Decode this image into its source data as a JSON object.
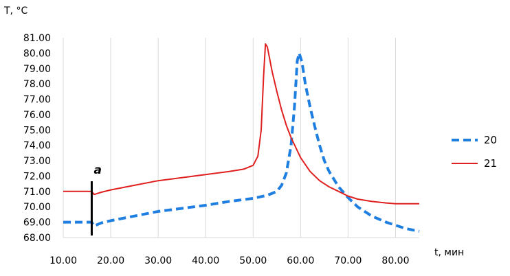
{
  "chart_data": {
    "type": "line",
    "title": "",
    "ylabel": "T, °C",
    "xlabel": "t, мин",
    "xlim": [
      10,
      85
    ],
    "ylim": [
      68,
      81
    ],
    "x_ticks": [
      10,
      20,
      30,
      40,
      50,
      60,
      70,
      80
    ],
    "x_tick_labels": [
      "10.00",
      "20.00",
      "30.00",
      "40.00",
      "50.00",
      "60.00",
      "70.00",
      "80.00"
    ],
    "y_ticks": [
      68,
      69,
      70,
      71,
      72,
      73,
      74,
      75,
      76,
      77,
      78,
      79,
      80,
      81
    ],
    "y_tick_labels": [
      "68.00",
      "69.00",
      "70.00",
      "71.00",
      "72.00",
      "73.00",
      "74.00",
      "75.00",
      "76.00",
      "77.00",
      "78.00",
      "79.00",
      "80.00",
      "81.00"
    ],
    "grid": "vertical",
    "legend_position": "right",
    "annotation": {
      "text": "a",
      "x": 16
    },
    "series": [
      {
        "name": "20",
        "color": "#1f7fe0",
        "style": "dashed",
        "points": [
          [
            10,
            69.0
          ],
          [
            15,
            69.0
          ],
          [
            16,
            69.0
          ],
          [
            16.5,
            68.75
          ],
          [
            18,
            68.95
          ],
          [
            20,
            69.1
          ],
          [
            25,
            69.4
          ],
          [
            30,
            69.7
          ],
          [
            35,
            69.9
          ],
          [
            40,
            70.1
          ],
          [
            45,
            70.35
          ],
          [
            50,
            70.55
          ],
          [
            53,
            70.75
          ],
          [
            55,
            71.0
          ],
          [
            56,
            71.4
          ],
          [
            57,
            72.2
          ],
          [
            58,
            74.0
          ],
          [
            58.7,
            76.5
          ],
          [
            59.3,
            79.5
          ],
          [
            59.7,
            80.0
          ],
          [
            60.3,
            79.4
          ],
          [
            61,
            78.0
          ],
          [
            62,
            76.5
          ],
          [
            63,
            75.2
          ],
          [
            64,
            74.0
          ],
          [
            65,
            73.0
          ],
          [
            66,
            72.3
          ],
          [
            68,
            71.3
          ],
          [
            70,
            70.6
          ],
          [
            72,
            70.0
          ],
          [
            75,
            69.4
          ],
          [
            78,
            69.0
          ],
          [
            80,
            68.8
          ],
          [
            82,
            68.6
          ],
          [
            85,
            68.4
          ]
        ]
      },
      {
        "name": "21",
        "color": "#e01f1f",
        "style": "solid",
        "points": [
          [
            10,
            71.0
          ],
          [
            16,
            71.0
          ],
          [
            16.5,
            70.8
          ],
          [
            18,
            70.95
          ],
          [
            20,
            71.1
          ],
          [
            25,
            71.4
          ],
          [
            30,
            71.7
          ],
          [
            35,
            71.9
          ],
          [
            40,
            72.1
          ],
          [
            45,
            72.3
          ],
          [
            48,
            72.45
          ],
          [
            50,
            72.7
          ],
          [
            51,
            73.3
          ],
          [
            51.7,
            75.0
          ],
          [
            52.2,
            78.5
          ],
          [
            52.6,
            80.6
          ],
          [
            53,
            80.4
          ],
          [
            54,
            78.8
          ],
          [
            55,
            77.5
          ],
          [
            56,
            76.3
          ],
          [
            57,
            75.3
          ],
          [
            58,
            74.5
          ],
          [
            60,
            73.2
          ],
          [
            62,
            72.3
          ],
          [
            64,
            71.7
          ],
          [
            66,
            71.3
          ],
          [
            68,
            71.0
          ],
          [
            70,
            70.7
          ],
          [
            72,
            70.5
          ],
          [
            75,
            70.35
          ],
          [
            78,
            70.25
          ],
          [
            80,
            70.2
          ],
          [
            85,
            70.2
          ]
        ]
      }
    ]
  }
}
